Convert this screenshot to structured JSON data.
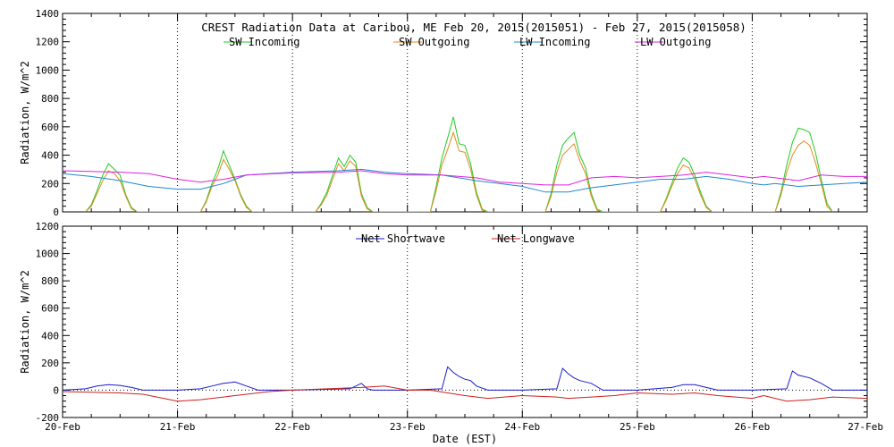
{
  "figure": {
    "title": "CREST Radiation Data at Caribou, ME   Feb 20, 2015(2015051) - Feb 27, 2015(2015058)",
    "xlabel": "Date (EST)"
  },
  "chart_data": [
    {
      "type": "line",
      "title": "CREST Radiation Data at Caribou, ME   Feb 20, 2015(2015051) - Feb 27, 2015(2015058)",
      "ylabel": "Radiation, W/m^2",
      "xlim": [
        0,
        7
      ],
      "ylim": [
        0,
        1400
      ],
      "yticks": [
        0,
        200,
        400,
        600,
        800,
        1000,
        1200,
        1400
      ],
      "xtick_labels": [
        "20-Feb",
        "21-Feb",
        "22-Feb",
        "23-Feb",
        "24-Feb",
        "25-Feb",
        "26-Feb",
        "27-Feb"
      ],
      "grid": true,
      "legend": "top",
      "series": [
        {
          "name": "SW Incoming",
          "color": "#22cc22",
          "x": [
            0.2,
            0.25,
            0.3,
            0.35,
            0.4,
            0.45,
            0.5,
            0.55,
            0.6,
            0.65,
            0.7,
            1.2,
            1.25,
            1.3,
            1.35,
            1.4,
            1.45,
            1.5,
            1.55,
            1.6,
            1.65,
            1.7,
            2.2,
            2.25,
            2.3,
            2.35,
            2.4,
            2.45,
            2.5,
            2.55,
            2.6,
            2.65,
            2.7,
            3.2,
            3.25,
            3.3,
            3.35,
            3.4,
            3.45,
            3.5,
            3.55,
            3.6,
            3.65,
            3.7,
            4.2,
            4.25,
            4.3,
            4.35,
            4.4,
            4.45,
            4.5,
            4.55,
            4.6,
            4.65,
            4.7,
            5.2,
            5.25,
            5.3,
            5.35,
            5.4,
            5.45,
            5.5,
            5.55,
            5.6,
            5.65,
            5.7,
            6.2,
            6.25,
            6.3,
            6.35,
            6.4,
            6.45,
            6.5,
            6.55,
            6.6,
            6.65,
            6.7
          ],
          "y": [
            0,
            50,
            150,
            260,
            340,
            300,
            260,
            120,
            30,
            0,
            0,
            0,
            80,
            200,
            300,
            430,
            330,
            230,
            120,
            40,
            0,
            0,
            0,
            60,
            140,
            260,
            380,
            320,
            400,
            350,
            130,
            30,
            0,
            0,
            180,
            380,
            520,
            670,
            480,
            470,
            340,
            140,
            20,
            0,
            0,
            130,
            330,
            470,
            520,
            560,
            400,
            310,
            130,
            20,
            0,
            0,
            90,
            200,
            310,
            380,
            350,
            260,
            140,
            40,
            0,
            0,
            0,
            140,
            330,
            490,
            590,
            580,
            560,
            420,
            230,
            60,
            0
          ]
        },
        {
          "name": "SW Outgoing",
          "color": "#e08a20",
          "x": [
            0.2,
            0.25,
            0.3,
            0.35,
            0.4,
            0.45,
            0.5,
            0.55,
            0.6,
            0.65,
            0.7,
            1.2,
            1.25,
            1.3,
            1.35,
            1.4,
            1.45,
            1.5,
            1.55,
            1.6,
            1.65,
            1.7,
            2.2,
            2.25,
            2.3,
            2.35,
            2.4,
            2.45,
            2.5,
            2.55,
            2.6,
            2.65,
            2.7,
            3.2,
            3.25,
            3.3,
            3.35,
            3.4,
            3.45,
            3.5,
            3.55,
            3.6,
            3.65,
            3.7,
            4.2,
            4.25,
            4.3,
            4.35,
            4.4,
            4.45,
            4.5,
            4.55,
            4.6,
            4.65,
            4.7,
            5.2,
            5.25,
            5.3,
            5.35,
            5.4,
            5.45,
            5.5,
            5.55,
            5.6,
            5.65,
            5.7,
            6.2,
            6.25,
            6.3,
            6.35,
            6.4,
            6.45,
            6.5,
            6.55,
            6.6,
            6.65,
            6.7
          ],
          "y": [
            0,
            40,
            130,
            220,
            290,
            270,
            220,
            110,
            20,
            0,
            0,
            0,
            70,
            180,
            260,
            370,
            300,
            220,
            110,
            30,
            0,
            0,
            0,
            50,
            120,
            230,
            340,
            290,
            360,
            320,
            110,
            20,
            0,
            0,
            150,
            330,
            440,
            560,
            430,
            420,
            300,
            120,
            10,
            0,
            0,
            110,
            280,
            400,
            440,
            480,
            360,
            270,
            110,
            10,
            0,
            0,
            80,
            180,
            270,
            330,
            310,
            230,
            120,
            30,
            0,
            0,
            0,
            120,
            280,
            400,
            470,
            500,
            470,
            350,
            200,
            40,
            0
          ]
        },
        {
          "name": "LW Incoming",
          "color": "#2288cc",
          "x": [
            0,
            0.25,
            0.5,
            0.75,
            1.0,
            1.2,
            1.4,
            1.6,
            2.0,
            2.4,
            2.6,
            2.8,
            3.0,
            3.3,
            3.6,
            3.8,
            4.0,
            4.2,
            4.4,
            4.6,
            4.8,
            5.0,
            5.2,
            5.4,
            5.6,
            5.8,
            6.0,
            6.1,
            6.2,
            6.4,
            6.6,
            6.8,
            7.0
          ],
          "y": [
            270,
            250,
            220,
            180,
            160,
            160,
            200,
            260,
            280,
            290,
            300,
            280,
            270,
            260,
            220,
            200,
            180,
            140,
            140,
            170,
            190,
            210,
            230,
            230,
            250,
            230,
            200,
            190,
            200,
            180,
            190,
            200,
            210
          ]
        },
        {
          "name": "LW Outgoing",
          "color": "#dd22dd",
          "x": [
            0,
            0.25,
            0.5,
            0.75,
            1.0,
            1.2,
            1.4,
            1.6,
            2.0,
            2.4,
            2.6,
            2.8,
            3.0,
            3.3,
            3.6,
            3.8,
            4.0,
            4.2,
            4.4,
            4.6,
            4.8,
            5.0,
            5.2,
            5.4,
            5.6,
            5.8,
            6.0,
            6.1,
            6.2,
            6.4,
            6.6,
            6.8,
            7.0
          ],
          "y": [
            290,
            285,
            280,
            270,
            230,
            210,
            230,
            260,
            275,
            280,
            290,
            270,
            260,
            260,
            240,
            210,
            200,
            190,
            190,
            240,
            250,
            240,
            250,
            260,
            280,
            260,
            240,
            250,
            240,
            220,
            260,
            250,
            250
          ]
        }
      ]
    },
    {
      "type": "line",
      "ylabel": "Radiation, W/m^2",
      "xlim": [
        0,
        7
      ],
      "ylim": [
        -200,
        1200
      ],
      "yticks": [
        -200,
        0,
        200,
        400,
        600,
        800,
        1000,
        1200
      ],
      "xtick_labels": [
        "20-Feb",
        "21-Feb",
        "22-Feb",
        "23-Feb",
        "24-Feb",
        "25-Feb",
        "26-Feb",
        "27-Feb"
      ],
      "grid": true,
      "legend": "top",
      "series": [
        {
          "name": "Net Shortwave",
          "color": "#1a1acc",
          "x": [
            0,
            0.2,
            0.3,
            0.4,
            0.5,
            0.6,
            0.7,
            1.0,
            1.2,
            1.3,
            1.4,
            1.5,
            1.6,
            1.7,
            2.0,
            2.5,
            2.6,
            2.65,
            2.7,
            3.0,
            3.3,
            3.35,
            3.4,
            3.45,
            3.5,
            3.55,
            3.6,
            3.7,
            4.0,
            4.3,
            4.35,
            4.4,
            4.45,
            4.5,
            4.6,
            4.7,
            5.0,
            5.3,
            5.4,
            5.5,
            5.6,
            5.7,
            6.0,
            6.3,
            6.35,
            6.4,
            6.5,
            6.6,
            6.7,
            7.0
          ],
          "y": [
            0,
            10,
            30,
            40,
            35,
            20,
            0,
            0,
            10,
            30,
            50,
            60,
            30,
            0,
            0,
            10,
            50,
            10,
            0,
            0,
            10,
            170,
            130,
            100,
            80,
            70,
            30,
            0,
            0,
            10,
            160,
            120,
            90,
            70,
            50,
            0,
            0,
            20,
            40,
            40,
            20,
            0,
            0,
            10,
            140,
            110,
            90,
            50,
            0,
            0
          ]
        },
        {
          "name": "Net Longwave",
          "color": "#cc2020",
          "x": [
            0,
            0.5,
            0.7,
            1.0,
            1.2,
            1.5,
            1.8,
            2.0,
            2.3,
            2.6,
            2.8,
            3.0,
            3.2,
            3.35,
            3.5,
            3.7,
            4.0,
            4.3,
            4.4,
            4.6,
            4.8,
            5.0,
            5.3,
            5.5,
            5.7,
            6.0,
            6.1,
            6.3,
            6.5,
            6.7,
            7.0
          ],
          "y": [
            -10,
            -20,
            -30,
            -80,
            -70,
            -40,
            -10,
            0,
            10,
            20,
            30,
            0,
            0,
            -20,
            -40,
            -60,
            -40,
            -50,
            -60,
            -50,
            -40,
            -20,
            -30,
            -20,
            -40,
            -60,
            -40,
            -80,
            -70,
            -50,
            -60
          ]
        }
      ]
    }
  ]
}
